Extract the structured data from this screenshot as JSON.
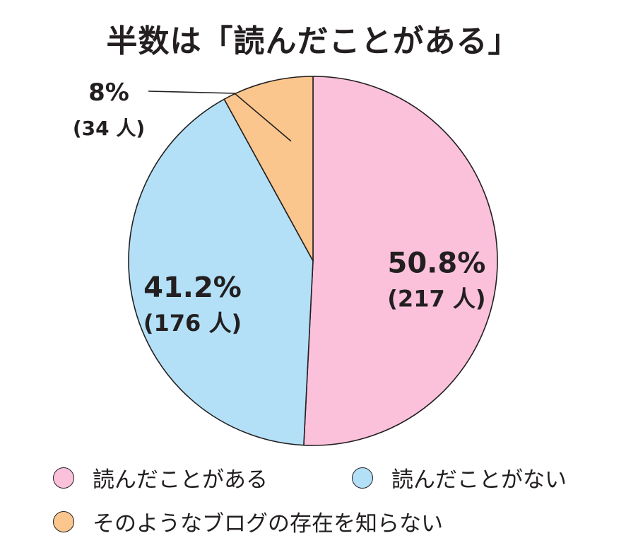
{
  "title": "半数は「読んだことがある」",
  "chart_data": {
    "type": "pie",
    "title": "半数は「読んだことがある」",
    "slices": [
      {
        "name": "読んだことがある",
        "percent": 50.8,
        "count": 217,
        "pct_label": "50.8%",
        "count_label": "(217 人)",
        "color": "#fbc1db"
      },
      {
        "name": "読んだことがない",
        "percent": 41.2,
        "count": 176,
        "pct_label": "41.2%",
        "count_label": "(176 人)",
        "color": "#b3e0f7"
      },
      {
        "name": "そのようなブログの存在を知らない",
        "percent": 8,
        "count": 34,
        "pct_label": "8%",
        "count_label": "(34 人)",
        "color": "#fac68d"
      }
    ],
    "legend_position": "bottom"
  },
  "legend": [
    {
      "label": "読んだことがある",
      "color": "#fbc1db"
    },
    {
      "label": "読んだことがない",
      "color": "#b3e0f7"
    },
    {
      "label": "そのようなブログの存在を知らない",
      "color": "#fac68d"
    }
  ],
  "colors": {
    "stroke": "#231f20",
    "text": "#231f20"
  }
}
